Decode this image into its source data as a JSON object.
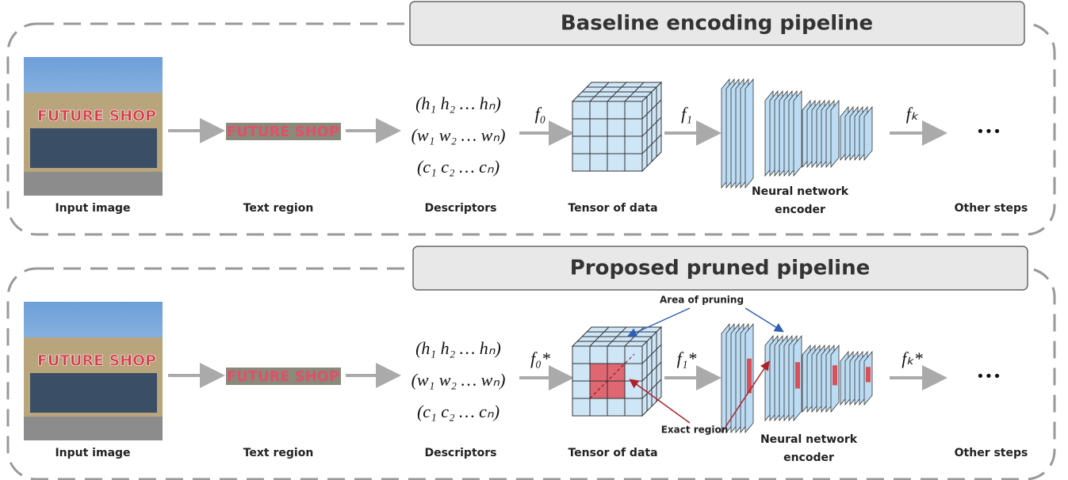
{
  "pipelines": [
    {
      "title": "Baseline encoding pipeline",
      "sign_text": "FUTURE SHOP",
      "stages": [
        "Input image",
        "Text region",
        "Descriptors",
        "Tensor of data",
        "Neural network encoder",
        "Other steps"
      ],
      "descriptors": [
        "(h₁ h₂ … hₙ)",
        "(w₁ w₂ … wₙ)",
        "(c₁ c₂ … cₙ)"
      ],
      "functions": [
        "f₀",
        "f₁",
        "fₖ"
      ],
      "ellipsis": "•••"
    },
    {
      "title": "Proposed pruned pipeline",
      "sign_text": "FUTURE SHOP",
      "stages": [
        "Input image",
        "Text region",
        "Descriptors",
        "Tensor of data",
        "Neural network encoder",
        "Other steps"
      ],
      "descriptors": [
        "(h₁ h₂ … hₙ)",
        "(w₁ w₂ … wₙ)",
        "(c₁ c₂ … cₙ)"
      ],
      "functions": [
        "f₀*",
        "f₁*",
        "fₖ*"
      ],
      "ellipsis": "•••",
      "annotations": [
        "Area of pruning",
        "Exact region"
      ]
    }
  ]
}
